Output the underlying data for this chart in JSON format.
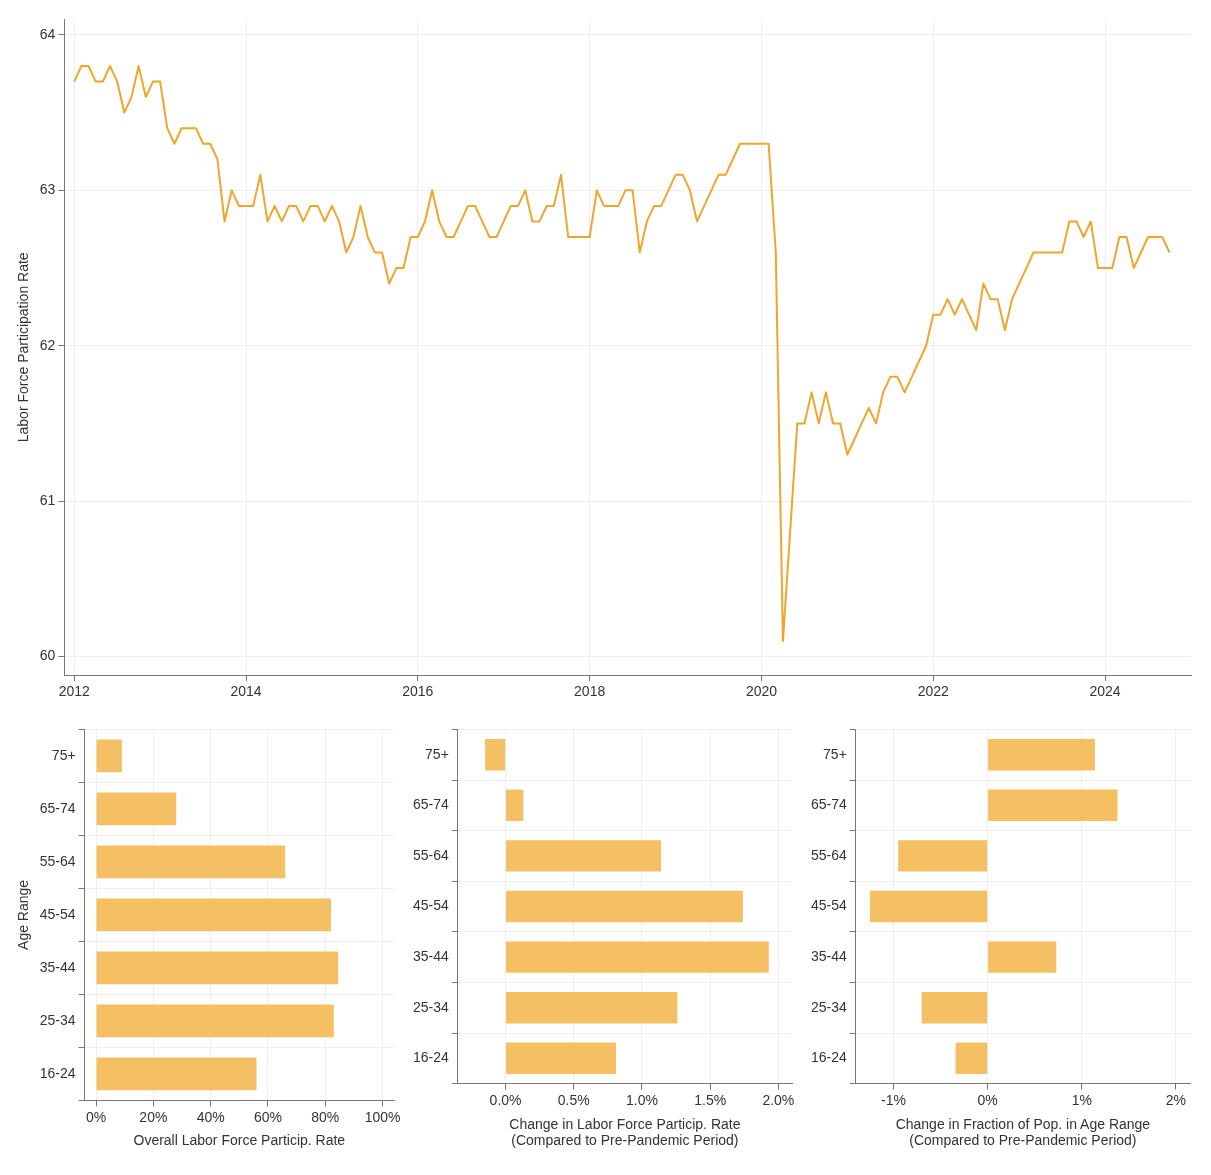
{
  "chart_data": [
    {
      "type": "line",
      "ylabel": "Labor Force Participation Rate",
      "color": "#f0a52c",
      "grid": true,
      "x": [
        "2012-01",
        "2012-02",
        "2012-03",
        "2012-04",
        "2012-05",
        "2012-06",
        "2012-07",
        "2012-08",
        "2012-09",
        "2012-10",
        "2012-11",
        "2012-12",
        "2013-01",
        "2013-02",
        "2013-03",
        "2013-04",
        "2013-05",
        "2013-06",
        "2013-07",
        "2013-08",
        "2013-09",
        "2013-10",
        "2013-11",
        "2013-12",
        "2014-01",
        "2014-02",
        "2014-03",
        "2014-04",
        "2014-05",
        "2014-06",
        "2014-07",
        "2014-08",
        "2014-09",
        "2014-10",
        "2014-11",
        "2014-12",
        "2015-01",
        "2015-02",
        "2015-03",
        "2015-04",
        "2015-05",
        "2015-06",
        "2015-07",
        "2015-08",
        "2015-09",
        "2015-10",
        "2015-11",
        "2015-12",
        "2016-01",
        "2016-02",
        "2016-03",
        "2016-04",
        "2016-05",
        "2016-06",
        "2016-07",
        "2016-08",
        "2016-09",
        "2016-10",
        "2016-11",
        "2016-12",
        "2017-01",
        "2017-02",
        "2017-03",
        "2017-04",
        "2017-05",
        "2017-06",
        "2017-07",
        "2017-08",
        "2017-09",
        "2017-10",
        "2017-11",
        "2017-12",
        "2018-01",
        "2018-02",
        "2018-03",
        "2018-04",
        "2018-05",
        "2018-06",
        "2018-07",
        "2018-08",
        "2018-09",
        "2018-10",
        "2018-11",
        "2018-12",
        "2019-01",
        "2019-02",
        "2019-03",
        "2019-04",
        "2019-05",
        "2019-06",
        "2019-07",
        "2019-08",
        "2019-09",
        "2019-10",
        "2019-11",
        "2019-12",
        "2020-01",
        "2020-02",
        "2020-03",
        "2020-04",
        "2020-05",
        "2020-06",
        "2020-07",
        "2020-08",
        "2020-09",
        "2020-10",
        "2020-11",
        "2020-12",
        "2021-01",
        "2021-02",
        "2021-03",
        "2021-04",
        "2021-05",
        "2021-06",
        "2021-07",
        "2021-08",
        "2021-09",
        "2021-10",
        "2021-11",
        "2021-12",
        "2022-01",
        "2022-02",
        "2022-03",
        "2022-04",
        "2022-05",
        "2022-06",
        "2022-07",
        "2022-08",
        "2022-09",
        "2022-10",
        "2022-11",
        "2022-12",
        "2023-01",
        "2023-02",
        "2023-03",
        "2023-04",
        "2023-05",
        "2023-06",
        "2023-07",
        "2023-08",
        "2023-09",
        "2023-10",
        "2023-11",
        "2023-12",
        "2024-01",
        "2024-02",
        "2024-03",
        "2024-04",
        "2024-05",
        "2024-06",
        "2024-07",
        "2024-08",
        "2024-09",
        "2024-10"
      ],
      "values": [
        63.7,
        63.8,
        63.8,
        63.7,
        63.7,
        63.8,
        63.7,
        63.5,
        63.6,
        63.8,
        63.6,
        63.7,
        63.7,
        63.4,
        63.3,
        63.4,
        63.4,
        63.4,
        63.3,
        63.3,
        63.2,
        62.8,
        63.0,
        62.9,
        62.9,
        62.9,
        63.1,
        62.8,
        62.9,
        62.8,
        62.9,
        62.9,
        62.8,
        62.9,
        62.9,
        62.8,
        62.9,
        62.8,
        62.6,
        62.7,
        62.9,
        62.7,
        62.6,
        62.6,
        62.4,
        62.5,
        62.5,
        62.7,
        62.7,
        62.8,
        63.0,
        62.8,
        62.7,
        62.7,
        62.8,
        62.9,
        62.9,
        62.8,
        62.7,
        62.7,
        62.8,
        62.9,
        62.9,
        63.0,
        62.8,
        62.8,
        62.9,
        62.9,
        63.1,
        62.7,
        62.7,
        62.7,
        62.7,
        63.0,
        62.9,
        62.9,
        62.9,
        63.0,
        63.0,
        62.6,
        62.8,
        62.9,
        62.9,
        63.0,
        63.1,
        63.1,
        63.0,
        62.8,
        62.9,
        63.0,
        63.1,
        63.1,
        63.2,
        63.3,
        63.3,
        63.3,
        63.3,
        63.3,
        62.6,
        60.1,
        60.8,
        61.5,
        61.5,
        61.7,
        61.5,
        61.7,
        61.5,
        61.5,
        61.3,
        61.4,
        61.5,
        61.6,
        61.5,
        61.7,
        61.8,
        61.8,
        61.7,
        61.8,
        61.9,
        62.0,
        62.2,
        62.2,
        62.3,
        62.2,
        62.3,
        62.2,
        62.1,
        62.4,
        62.3,
        62.3,
        62.1,
        62.3,
        62.4,
        62.5,
        62.6,
        62.6,
        62.6,
        62.6,
        62.6,
        62.8,
        62.8,
        62.7,
        62.8,
        62.5,
        62.5,
        62.5,
        62.7,
        62.7,
        62.5,
        62.6,
        62.7,
        62.7,
        62.7,
        62.6
      ],
      "xlim": [
        "2011-11-20",
        "2025-01"
      ],
      "xticks": [
        "2012",
        "2014",
        "2016",
        "2018",
        "2020",
        "2022",
        "2024"
      ],
      "ylim": [
        59.88,
        64.1
      ],
      "yticks": [
        60,
        61,
        62,
        63,
        64
      ]
    },
    {
      "type": "bar",
      "orientation": "horizontal",
      "ylabel": "Age Range",
      "xlabel": "Overall Labor Force Particip. Rate",
      "color": "#f5c063",
      "grid": true,
      "categories": [
        "75+",
        "65-74",
        "55-64",
        "45-54",
        "35-44",
        "25-34",
        "16-24"
      ],
      "values": [
        9,
        28,
        66,
        82,
        84.5,
        83,
        56
      ],
      "xlim": [
        -4,
        104
      ],
      "xticks": [
        {
          "value": 0,
          "label": "0%"
        },
        {
          "value": 20,
          "label": "20%"
        },
        {
          "value": 40,
          "label": "40%"
        },
        {
          "value": 60,
          "label": "60%"
        },
        {
          "value": 80,
          "label": "80%"
        },
        {
          "value": 100,
          "label": "100%"
        }
      ]
    },
    {
      "type": "bar",
      "orientation": "horizontal",
      "xlabel": "Change in Labor Force Particip. Rate\n(Compared to Pre-Pandemic Period)",
      "color": "#f5c063",
      "grid": true,
      "categories": [
        "75+",
        "65-74",
        "55-64",
        "45-54",
        "35-44",
        "25-34",
        "16-24"
      ],
      "values": [
        -0.15,
        0.13,
        1.14,
        1.74,
        1.93,
        1.26,
        0.81
      ],
      "xlim": [
        -0.35,
        2.1
      ],
      "xticks": [
        {
          "value": 0,
          "label": "0.0%"
        },
        {
          "value": 0.5,
          "label": "0.5%"
        },
        {
          "value": 1,
          "label": "1.0%"
        },
        {
          "value": 1.5,
          "label": "1.5%"
        },
        {
          "value": 2,
          "label": "2.0%"
        }
      ]
    },
    {
      "type": "bar",
      "orientation": "horizontal",
      "xlabel": "Change in Fraction of Pop. in Age Range\n(Compared to Pre-Pandemic Period)",
      "color": "#f5c063",
      "grid": true,
      "categories": [
        "75+",
        "65-74",
        "55-64",
        "45-54",
        "35-44",
        "25-34",
        "16-24"
      ],
      "values": [
        1.14,
        1.38,
        -0.95,
        -1.25,
        0.73,
        -0.7,
        -0.34
      ],
      "xlim": [
        -1.4,
        2.15
      ],
      "xticks": [
        {
          "value": -1,
          "label": "-1%"
        },
        {
          "value": 0,
          "label": "0%"
        },
        {
          "value": 1,
          "label": "1%"
        },
        {
          "value": 2,
          "label": "2%"
        }
      ]
    }
  ]
}
